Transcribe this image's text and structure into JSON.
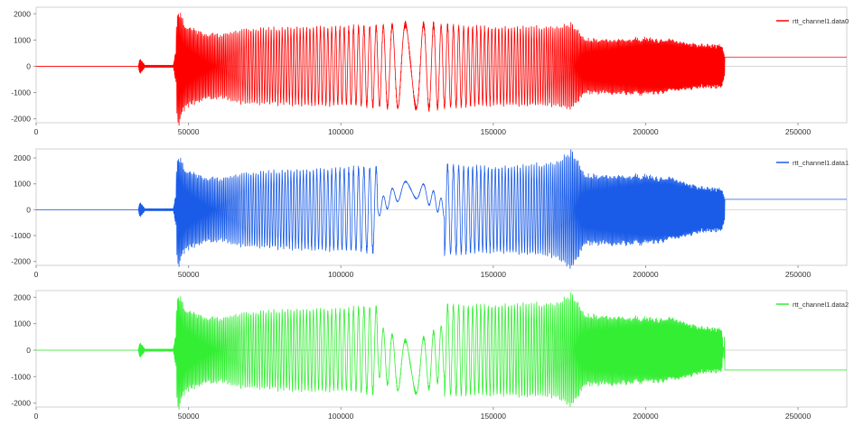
{
  "chart_data": [
    {
      "type": "line",
      "x_range": [
        0,
        266000
      ],
      "y_range": [
        -2150,
        2250
      ],
      "x_ticks": [
        0,
        50000,
        100000,
        150000,
        200000,
        250000
      ],
      "y_ticks": [
        -2000,
        -1000,
        0,
        1000,
        2000
      ],
      "grid": "horizontal-zero-line",
      "legend_position": "top-right",
      "series": [
        {
          "name": "rtt_channel1.data0",
          "color": "#ff0000",
          "envelope": [
            [
              0,
              0
            ],
            [
              33500,
              0
            ],
            [
              34000,
              300
            ],
            [
              35500,
              80
            ],
            [
              45000,
              80
            ],
            [
              46500,
              2200
            ],
            [
              49000,
              1500
            ],
            [
              55000,
              1250
            ],
            [
              60000,
              1150
            ],
            [
              65000,
              1300
            ],
            [
              70000,
              1400
            ],
            [
              80000,
              1400
            ],
            [
              90000,
              1450
            ],
            [
              100000,
              1450
            ],
            [
              108000,
              1500
            ],
            [
              115000,
              1550
            ],
            [
              122000,
              1600
            ],
            [
              130000,
              1600
            ],
            [
              140000,
              1500
            ],
            [
              150000,
              1450
            ],
            [
              160000,
              1450
            ],
            [
              170000,
              1450
            ],
            [
              176000,
              1600
            ],
            [
              180000,
              1000
            ],
            [
              190000,
              1000
            ],
            [
              200000,
              1050
            ],
            [
              210000,
              950
            ],
            [
              218000,
              800
            ],
            [
              225000,
              800
            ],
            [
              226000,
              350
            ],
            [
              266000,
              350
            ]
          ],
          "steady_value": 350,
          "signal_end": 226000
        }
      ]
    },
    {
      "type": "line",
      "x_range": [
        0,
        266000
      ],
      "y_range": [
        -2150,
        2350
      ],
      "x_ticks": [
        0,
        50000,
        100000,
        150000,
        200000,
        250000
      ],
      "y_ticks": [
        -2000,
        -1000,
        0,
        1000,
        2000
      ],
      "grid": "horizontal-zero-line",
      "legend_position": "top-right",
      "series": [
        {
          "name": "rtt_channel1.data1",
          "color": "#1a5ce8",
          "envelope": [
            [
              0,
              0
            ],
            [
              33500,
              0
            ],
            [
              34000,
              300
            ],
            [
              35500,
              80
            ],
            [
              45000,
              80
            ],
            [
              46500,
              2150
            ],
            [
              49000,
              1500
            ],
            [
              55000,
              1250
            ],
            [
              60000,
              1150
            ],
            [
              65000,
              1300
            ],
            [
              70000,
              1400
            ],
            [
              80000,
              1450
            ],
            [
              90000,
              1500
            ],
            [
              100000,
              1550
            ],
            [
              108000,
              1600
            ],
            [
              115000,
              1650
            ],
            [
              122000,
              1700
            ],
            [
              130000,
              1750
            ],
            [
              140000,
              1650
            ],
            [
              150000,
              1600
            ],
            [
              160000,
              1650
            ],
            [
              170000,
              1750
            ],
            [
              176000,
              2250
            ],
            [
              180000,
              1300
            ],
            [
              190000,
              1300
            ],
            [
              200000,
              1300
            ],
            [
              210000,
              1150
            ],
            [
              218000,
              850
            ],
            [
              225000,
              800
            ],
            [
              226000,
              400
            ],
            [
              266000,
              400
            ]
          ],
          "steady_value": 400,
          "signal_end": 226000
        }
      ]
    },
    {
      "type": "line",
      "x_range": [
        0,
        266000
      ],
      "y_range": [
        -2150,
        2250
      ],
      "x_ticks": [
        0,
        50000,
        100000,
        150000,
        200000,
        250000
      ],
      "y_ticks": [
        -2000,
        -1000,
        0,
        1000,
        2000
      ],
      "grid": "horizontal-zero-line",
      "legend_position": "top-right",
      "series": [
        {
          "name": "rtt_channel1.data2",
          "color": "#33ee33",
          "envelope": [
            [
              0,
              0
            ],
            [
              33500,
              0
            ],
            [
              34000,
              300
            ],
            [
              35500,
              80
            ],
            [
              45000,
              80
            ],
            [
              46500,
              2200
            ],
            [
              49000,
              1500
            ],
            [
              55000,
              1250
            ],
            [
              60000,
              1150
            ],
            [
              65000,
              1300
            ],
            [
              70000,
              1400
            ],
            [
              80000,
              1450
            ],
            [
              90000,
              1500
            ],
            [
              100000,
              1500
            ],
            [
              108000,
              1600
            ],
            [
              115000,
              1650
            ],
            [
              122000,
              1650
            ],
            [
              130000,
              1700
            ],
            [
              140000,
              1650
            ],
            [
              150000,
              1650
            ],
            [
              160000,
              1700
            ],
            [
              170000,
              1700
            ],
            [
              176000,
              2100
            ],
            [
              180000,
              1300
            ],
            [
              190000,
              1250
            ],
            [
              200000,
              1200
            ],
            [
              210000,
              1150
            ],
            [
              218000,
              850
            ],
            [
              225000,
              800
            ],
            [
              226000,
              -750
            ],
            [
              266000,
              -750
            ]
          ],
          "steady_value": -750,
          "signal_end": 226000
        }
      ]
    }
  ]
}
